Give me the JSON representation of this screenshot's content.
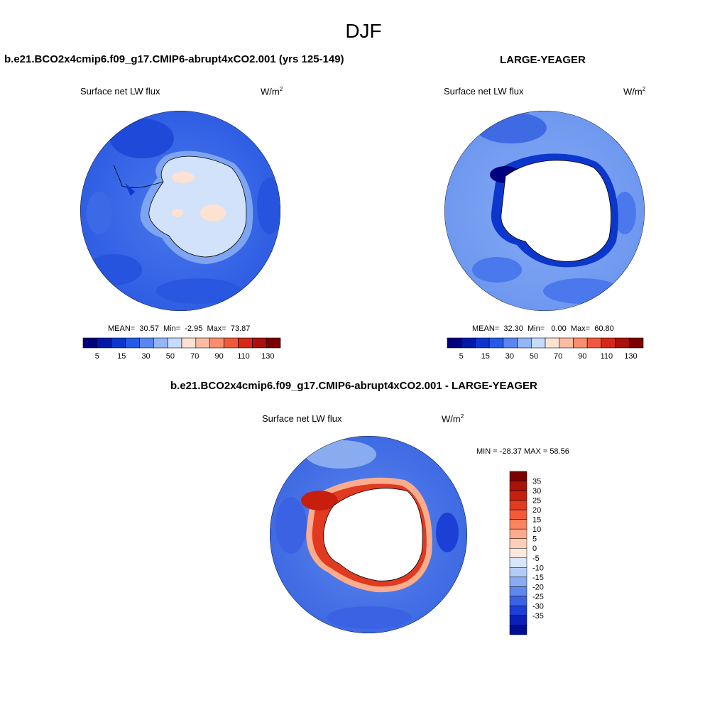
{
  "season": "DJF",
  "panels": [
    {
      "title": "b.e21.BCO2x4cmip6.f09_g17.CMIP6-abrupt4xCO2.001 (yrs 125-149)",
      "variable": "Surface net LW flux",
      "units_base": "W/m",
      "units_exp": "2",
      "stats": {
        "mean_label": "MEAN=",
        "mean": "30.57",
        "min_label": "Min=",
        "min": "-2.95",
        "max_label": "Max=",
        "max": "73.87"
      }
    },
    {
      "title": "LARGE-YEAGER",
      "variable": "Surface net LW flux",
      "units_base": "W/m",
      "units_exp": "2",
      "stats": {
        "mean_label": "MEAN=",
        "mean": "32.30",
        "min_label": "Min=",
        "min": "0.00",
        "max_label": "Max=",
        "max": "60.80"
      }
    },
    {
      "title": "b.e21.BCO2x4cmip6.f09_g17.CMIP6-abrupt4xCO2.001 - LARGE-YEAGER",
      "variable": "Surface net LW flux",
      "units_base": "W/m",
      "units_exp": "2",
      "stats_text": "MIN = -28.37 MAX =  58.56"
    }
  ],
  "colorbar_main": {
    "colors": [
      "#00007e",
      "#0219a8",
      "#0c37cd",
      "#2659e5",
      "#5a86ef",
      "#94b5f6",
      "#c5dbfb",
      "#fde2d2",
      "#fbbca2",
      "#f78f6e",
      "#ee5a3d",
      "#d42a17",
      "#a9120a",
      "#7b0000"
    ],
    "labels": [
      "5",
      "15",
      "30",
      "50",
      "70",
      "90",
      "110",
      "130"
    ]
  },
  "colorbar_diff": {
    "colors": [
      "#7b0000",
      "#a9120a",
      "#c81e0e",
      "#e13a20",
      "#f25b3a",
      "#f88462",
      "#fbac8c",
      "#fcd0b8",
      "#fde8dc",
      "#d6e6fb",
      "#b3cdf7",
      "#89acf1",
      "#5f88ea",
      "#3b62e2",
      "#1c3fd6",
      "#0a21b8",
      "#020f92"
    ],
    "labels": [
      "35",
      "30",
      "25",
      "20",
      "15",
      "10",
      "5",
      "0",
      "-5",
      "-10",
      "-15",
      "-20",
      "-25",
      "-30",
      "-35"
    ]
  },
  "map_colors": {
    "ocean_mid": "#3c6ae6",
    "ocean_dark": "#1d45d8",
    "ocean_light": "#6a95f0",
    "ice_pale": "#cfe0fa",
    "ice_peach": "#fde2d2",
    "land_white": "#ffffff",
    "warm_strong": "#e13a20",
    "warm_mid": "#f78f6e",
    "warm_light": "#fbc6ae"
  }
}
